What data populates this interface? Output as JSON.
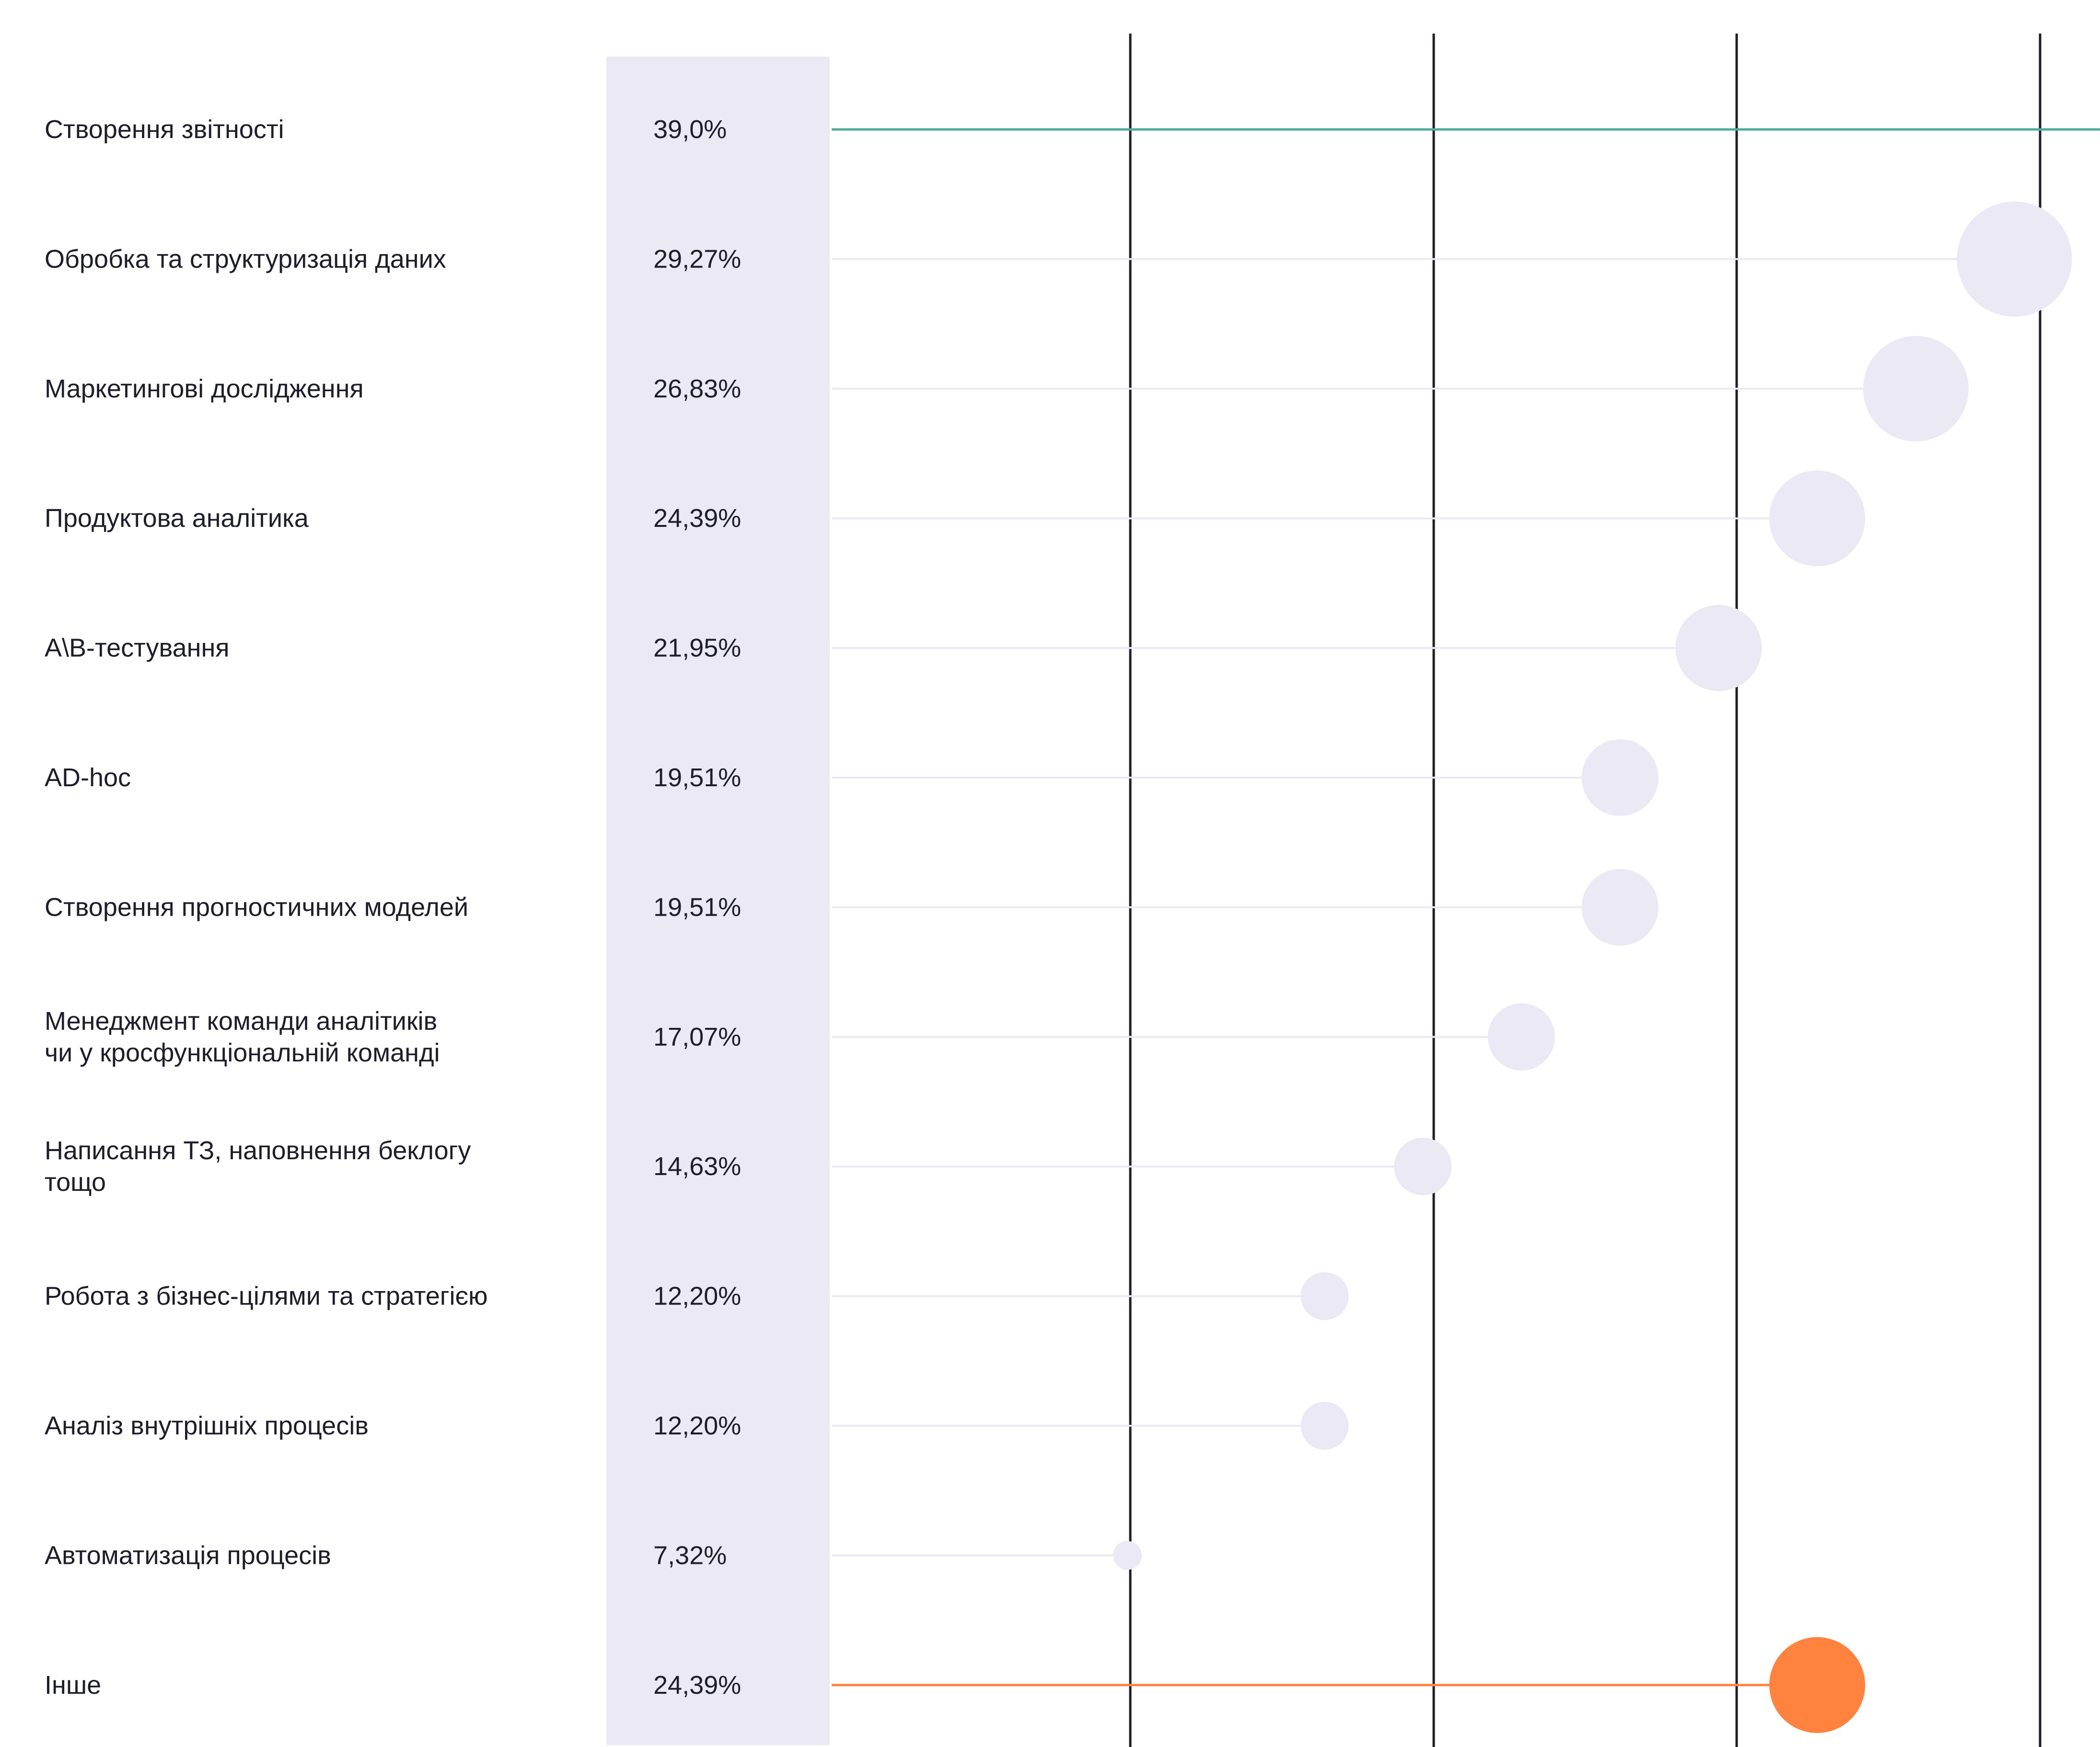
{
  "chart_data": {
    "type": "lollipop",
    "categories": [
      [
        "Створення звітності"
      ],
      [
        "Обробка та структуризація даних"
      ],
      [
        "Маркетингові дослідження"
      ],
      [
        "Продуктова аналітика"
      ],
      [
        "A\\B-тестування"
      ],
      [
        "AD-hoc"
      ],
      [
        "Створення прогностичних моделей"
      ],
      [
        "Менеджмент команди аналітиків",
        "чи у кросфункціональній команді"
      ],
      [
        "Написання ТЗ, наповнення беклогу",
        "тощо"
      ],
      [
        "Робота з бізнес-цілями та стратегією"
      ],
      [
        "Аналіз внутрішніх процесів"
      ],
      [
        "Автоматизація процесів"
      ],
      [
        "Інше"
      ]
    ],
    "values": [
      39.0,
      29.27,
      26.83,
      24.39,
      21.95,
      19.51,
      19.51,
      17.07,
      14.63,
      12.2,
      12.2,
      7.32,
      24.39
    ],
    "value_labels": [
      "39,0%",
      "29,27%",
      "26,83%",
      "24,39%",
      "21,95%",
      "19,51%",
      "19,51%",
      "17,07%",
      "14,63%",
      "12,20%",
      "12,20%",
      "7,32%",
      "24,39%"
    ],
    "xlim": [
      0,
      40
    ],
    "grid": true,
    "colors": {
      "highlight_top": "#52aa9b",
      "highlight_other": "#ff823e",
      "default_dot": "#eae9f4",
      "value_column": "#eae9f4",
      "gridline": "#1d1d2b",
      "connector": "#eae9f4",
      "text": "#1d1d2b"
    },
    "highlight": {
      "0": "highlight_top",
      "12": "highlight_other"
    }
  }
}
